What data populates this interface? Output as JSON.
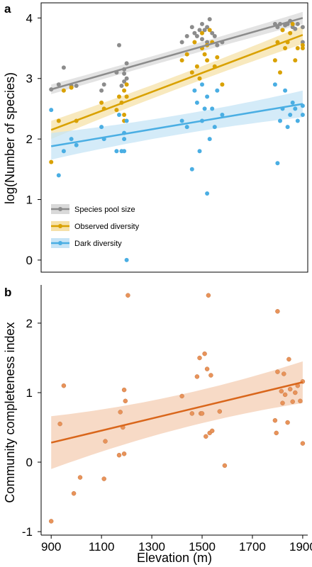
{
  "chart_data": [
    {
      "panel_label": "a",
      "type": "scatter",
      "ylabel": "log(Number of species)",
      "xlabel": "",
      "xlim": [
        860,
        1920
      ],
      "ylim": [
        -0.2,
        4.25
      ],
      "yticks": [
        0,
        1,
        2,
        3,
        4
      ],
      "legend_position": "bottom-left",
      "series": [
        {
          "name": "Species pool size",
          "color": "#8c8c8c",
          "band_color": "#d9d9d9",
          "fit": {
            "x": [
              900,
              1900
            ],
            "y": [
              2.82,
              4.0
            ],
            "band": [
              0.08,
              0.06,
              0.1
            ]
          },
          "points": [
            [
              900,
              2.82
            ],
            [
              930,
              2.9
            ],
            [
              950,
              3.18
            ],
            [
              980,
              2.88
            ],
            [
              1000,
              2.88
            ],
            [
              1100,
              2.8
            ],
            [
              1110,
              2.9
            ],
            [
              1160,
              3.1
            ],
            [
              1170,
              3.55
            ],
            [
              1180,
              2.88
            ],
            [
              1190,
              3.15
            ],
            [
              1190,
              3.08
            ],
            [
              1200,
              3.25
            ],
            [
              1200,
              3.0
            ],
            [
              1190,
              2.95
            ],
            [
              1420,
              3.6
            ],
            [
              1440,
              3.7
            ],
            [
              1460,
              3.85
            ],
            [
              1470,
              3.75
            ],
            [
              1480,
              3.7
            ],
            [
              1490,
              3.8
            ],
            [
              1500,
              3.9
            ],
            [
              1500,
              3.65
            ],
            [
              1510,
              3.8
            ],
            [
              1520,
              3.85
            ],
            [
              1520,
              3.6
            ],
            [
              1530,
              3.98
            ],
            [
              1540,
              3.75
            ],
            [
              1550,
              3.7
            ],
            [
              1560,
              3.55
            ],
            [
              1580,
              3.6
            ],
            [
              1790,
              3.9
            ],
            [
              1800,
              3.85
            ],
            [
              1810,
              3.9
            ],
            [
              1820,
              3.8
            ],
            [
              1830,
              3.88
            ],
            [
              1840,
              3.9
            ],
            [
              1850,
              3.95
            ],
            [
              1860,
              3.85
            ],
            [
              1870,
              3.82
            ],
            [
              1880,
              3.9
            ],
            [
              1900,
              3.6
            ],
            [
              1900,
              3.85
            ]
          ]
        },
        {
          "name": "Observed diversity",
          "color": "#d9a100",
          "band_color": "#f6e1a8",
          "fit": {
            "x": [
              900,
              1900
            ],
            "y": [
              2.15,
              3.72
            ],
            "band": [
              0.15,
              0.07,
              0.15
            ]
          },
          "points": [
            [
              900,
              1.62
            ],
            [
              930,
              2.3
            ],
            [
              950,
              2.8
            ],
            [
              980,
              2.85
            ],
            [
              1000,
              2.3
            ],
            [
              1100,
              2.6
            ],
            [
              1110,
              2.5
            ],
            [
              1160,
              2.48
            ],
            [
              1170,
              2.7
            ],
            [
              1180,
              2.6
            ],
            [
              1190,
              2.8
            ],
            [
              1190,
              2.4
            ],
            [
              1200,
              2.7
            ],
            [
              1200,
              2.9
            ],
            [
              1190,
              2.3
            ],
            [
              1420,
              3.3
            ],
            [
              1440,
              3.4
            ],
            [
              1460,
              3.1
            ],
            [
              1470,
              3.6
            ],
            [
              1480,
              3.2
            ],
            [
              1490,
              3.0
            ],
            [
              1500,
              3.5
            ],
            [
              1500,
              3.75
            ],
            [
              1510,
              3.4
            ],
            [
              1520,
              3.3
            ],
            [
              1520,
              3.55
            ],
            [
              1530,
              3.8
            ],
            [
              1540,
              3.6
            ],
            [
              1550,
              3.2
            ],
            [
              1560,
              3.35
            ],
            [
              1580,
              2.9
            ],
            [
              1790,
              3.3
            ],
            [
              1800,
              3.6
            ],
            [
              1810,
              3.1
            ],
            [
              1820,
              3.8
            ],
            [
              1830,
              3.5
            ],
            [
              1840,
              3.6
            ],
            [
              1850,
              3.75
            ],
            [
              1860,
              3.9
            ],
            [
              1870,
              3.3
            ],
            [
              1880,
              3.5
            ],
            [
              1900,
              3.55
            ],
            [
              1900,
              3.5
            ]
          ]
        },
        {
          "name": "Dark diversity",
          "color": "#4aaee3",
          "band_color": "#c6e4f6",
          "fit": {
            "x": [
              900,
              1900
            ],
            "y": [
              1.88,
              2.58
            ],
            "band": [
              0.22,
              0.1,
              0.22
            ]
          },
          "points": [
            [
              900,
              2.48
            ],
            [
              930,
              1.4
            ],
            [
              950,
              1.8
            ],
            [
              980,
              2.0
            ],
            [
              1000,
              1.9
            ],
            [
              1100,
              2.2
            ],
            [
              1110,
              2.0
            ],
            [
              1160,
              1.8
            ],
            [
              1170,
              2.4
            ],
            [
              1180,
              1.8
            ],
            [
              1190,
              2.0
            ],
            [
              1190,
              1.8
            ],
            [
              1200,
              2.3
            ],
            [
              1200,
              0.0
            ],
            [
              1190,
              2.1
            ],
            [
              1420,
              2.3
            ],
            [
              1440,
              2.2
            ],
            [
              1460,
              1.5
            ],
            [
              1470,
              2.8
            ],
            [
              1480,
              2.6
            ],
            [
              1490,
              1.8
            ],
            [
              1500,
              2.9
            ],
            [
              1500,
              2.3
            ],
            [
              1510,
              2.5
            ],
            [
              1520,
              1.1
            ],
            [
              1520,
              2.7
            ],
            [
              1530,
              2.0
            ],
            [
              1540,
              2.5
            ],
            [
              1550,
              2.2
            ],
            [
              1560,
              2.8
            ],
            [
              1580,
              2.4
            ],
            [
              1790,
              2.9
            ],
            [
              1800,
              1.6
            ],
            [
              1810,
              2.3
            ],
            [
              1820,
              2.5
            ],
            [
              1830,
              2.8
            ],
            [
              1840,
              2.2
            ],
            [
              1850,
              2.4
            ],
            [
              1860,
              2.6
            ],
            [
              1870,
              2.5
            ],
            [
              1880,
              2.3
            ],
            [
              1900,
              2.4
            ],
            [
              1900,
              2.55
            ]
          ]
        }
      ]
    },
    {
      "panel_label": "b",
      "type": "scatter",
      "ylabel": "Community completeness index",
      "xlabel": "Elevation (m)",
      "xlim": [
        860,
        1920
      ],
      "ylim": [
        -1.05,
        2.55
      ],
      "xticks": [
        900,
        1100,
        1300,
        1500,
        1700,
        1900
      ],
      "yticks": [
        -1,
        0,
        1,
        2
      ],
      "series": [
        {
          "color": "#e8935a",
          "band_color": "#f6d3bc",
          "line_color": "#d9661b",
          "fit": {
            "x": [
              900,
              1900
            ],
            "y": [
              0.28,
              1.15
            ],
            "band": [
              0.38,
              0.15,
              0.3
            ]
          },
          "points": [
            [
              900,
              -0.85
            ],
            [
              935,
              0.55
            ],
            [
              950,
              1.1
            ],
            [
              990,
              -0.45
            ],
            [
              1015,
              -0.22
            ],
            [
              1110,
              -0.24
            ],
            [
              1115,
              0.3
            ],
            [
              1170,
              0.1
            ],
            [
              1175,
              0.72
            ],
            [
              1185,
              0.5
            ],
            [
              1190,
              0.12
            ],
            [
              1190,
              1.04
            ],
            [
              1195,
              0.88
            ],
            [
              1205,
              2.4
            ],
            [
              1420,
              0.95
            ],
            [
              1460,
              0.7
            ],
            [
              1480,
              1.23
            ],
            [
              1490,
              1.5
            ],
            [
              1495,
              0.7
            ],
            [
              1500,
              0.7
            ],
            [
              1510,
              1.56
            ],
            [
              1515,
              0.37
            ],
            [
              1520,
              1.34
            ],
            [
              1525,
              2.4
            ],
            [
              1530,
              0.42
            ],
            [
              1535,
              1.25
            ],
            [
              1540,
              0.45
            ],
            [
              1570,
              0.73
            ],
            [
              1590,
              -0.05
            ],
            [
              1790,
              0.6
            ],
            [
              1795,
              0.42
            ],
            [
              1800,
              2.17
            ],
            [
              1800,
              1.3
            ],
            [
              1815,
              1.02
            ],
            [
              1820,
              0.85
            ],
            [
              1825,
              1.27
            ],
            [
              1830,
              0.97
            ],
            [
              1840,
              0.57
            ],
            [
              1845,
              1.48
            ],
            [
              1850,
              1.05
            ],
            [
              1860,
              0.87
            ],
            [
              1870,
              1.0
            ],
            [
              1880,
              1.1
            ],
            [
              1890,
              0.88
            ],
            [
              1900,
              0.27
            ],
            [
              1900,
              1.16
            ]
          ]
        }
      ]
    }
  ]
}
